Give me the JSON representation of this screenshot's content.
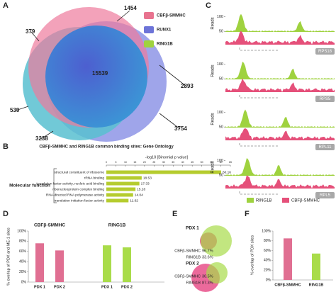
{
  "chart_data": [
    {
      "type": "venn3",
      "label": "A",
      "sets": [
        {
          "name": "CBFβ-SMMHC",
          "color": "#e8738f"
        },
        {
          "name": "RUNX1",
          "color": "#6d74d8"
        },
        {
          "name": "RING1B",
          "color": "#9fd23f"
        }
      ],
      "values": [
        1454,
        379,
        15539,
        2893,
        539,
        3754,
        3238
      ]
    },
    {
      "type": "barh",
      "label": "B",
      "title": "CBFβ-SMMHC and RING1B common binding sites: Gene Ontology",
      "xlabel": "-log10 [Binomial p value]",
      "group_label": "Molecular function",
      "categories": [
        "structural constituent of ribosome",
        "rRNA binding",
        "translation factor activity, nucleic acid binding",
        "ribonucleoprotein complex binding",
        "RNA-directed RNA polymerase activity",
        "translation initiation factor activity"
      ],
      "values": [
        60.16,
        18.53,
        17.33,
        15.28,
        14.04,
        11.62
      ],
      "color": "#b5cc2e",
      "xlim": [
        0,
        65
      ],
      "xticks": [
        0,
        5,
        10,
        15,
        20,
        25,
        30,
        35,
        40,
        45,
        50,
        55,
        60,
        65
      ]
    },
    {
      "type": "tracks",
      "label": "C",
      "ylabel": "Reads",
      "ylim": [
        0,
        120
      ],
      "yticks": [
        50,
        100
      ],
      "genes": [
        "RPS18",
        "RPS5",
        "RPL11",
        "RPL5"
      ],
      "series": [
        {
          "name": "RING1B",
          "color": "#9fd23f"
        },
        {
          "name": "CBFβ-SMMHC",
          "color": "#e5507a"
        }
      ]
    },
    {
      "type": "grouped_bar",
      "label": "D",
      "ylabel": "% overlap of PDX and ME-1 sites",
      "categories": [
        "PDX 1",
        "PDX 2"
      ],
      "series": [
        {
          "name": "CBFβ-SMMHC",
          "color": "#e06f92",
          "values": [
            76,
            62
          ]
        },
        {
          "name": "RING1B",
          "color": "#a9dc4a",
          "values": [
            72,
            68
          ]
        }
      ],
      "ylim": [
        0,
        100
      ],
      "yticks": [
        {
          "value": 0,
          "label": "0%"
        },
        {
          "value": 20,
          "label": "20%"
        },
        {
          "value": 40,
          "label": "40%"
        },
        {
          "value": 60,
          "label": "60%"
        },
        {
          "value": 80,
          "label": "80%"
        },
        {
          "value": 100,
          "label": "100%"
        }
      ]
    },
    {
      "type": "venn2",
      "label": "E",
      "panels": [
        {
          "title": "PDX 1",
          "categories": [
            "CBFβ-SMMHC",
            "RING1B"
          ],
          "values": [
            96.7,
            33.6
          ],
          "value_labels": [
            "96.7%",
            "33.6%"
          ]
        },
        {
          "title": "PDX 2",
          "categories": [
            "CBFβ-SMMHC",
            "RING1B"
          ],
          "values": [
            30.5,
            87.3
          ],
          "value_labels": [
            "30.5%",
            "87.3%"
          ]
        }
      ],
      "colors": [
        "#e8508a",
        "#a8dc4a"
      ]
    },
    {
      "type": "bar",
      "label": "F",
      "ylabel": "% overlap of PDX sites",
      "categories": [
        "CBFβ-SMMHC",
        "RING1B"
      ],
      "values": [
        85,
        54
      ],
      "colors": [
        "#e06f92",
        "#a9dc4a"
      ],
      "ylim": [
        0,
        100
      ],
      "yticks": [
        {
          "value": 0,
          "label": "0%"
        },
        {
          "value": 20,
          "label": "20%"
        },
        {
          "value": 40,
          "label": "40%"
        },
        {
          "value": 60,
          "label": "60%"
        },
        {
          "value": 80,
          "label": "80%"
        },
        {
          "value": 100,
          "label": "100%"
        }
      ]
    }
  ]
}
